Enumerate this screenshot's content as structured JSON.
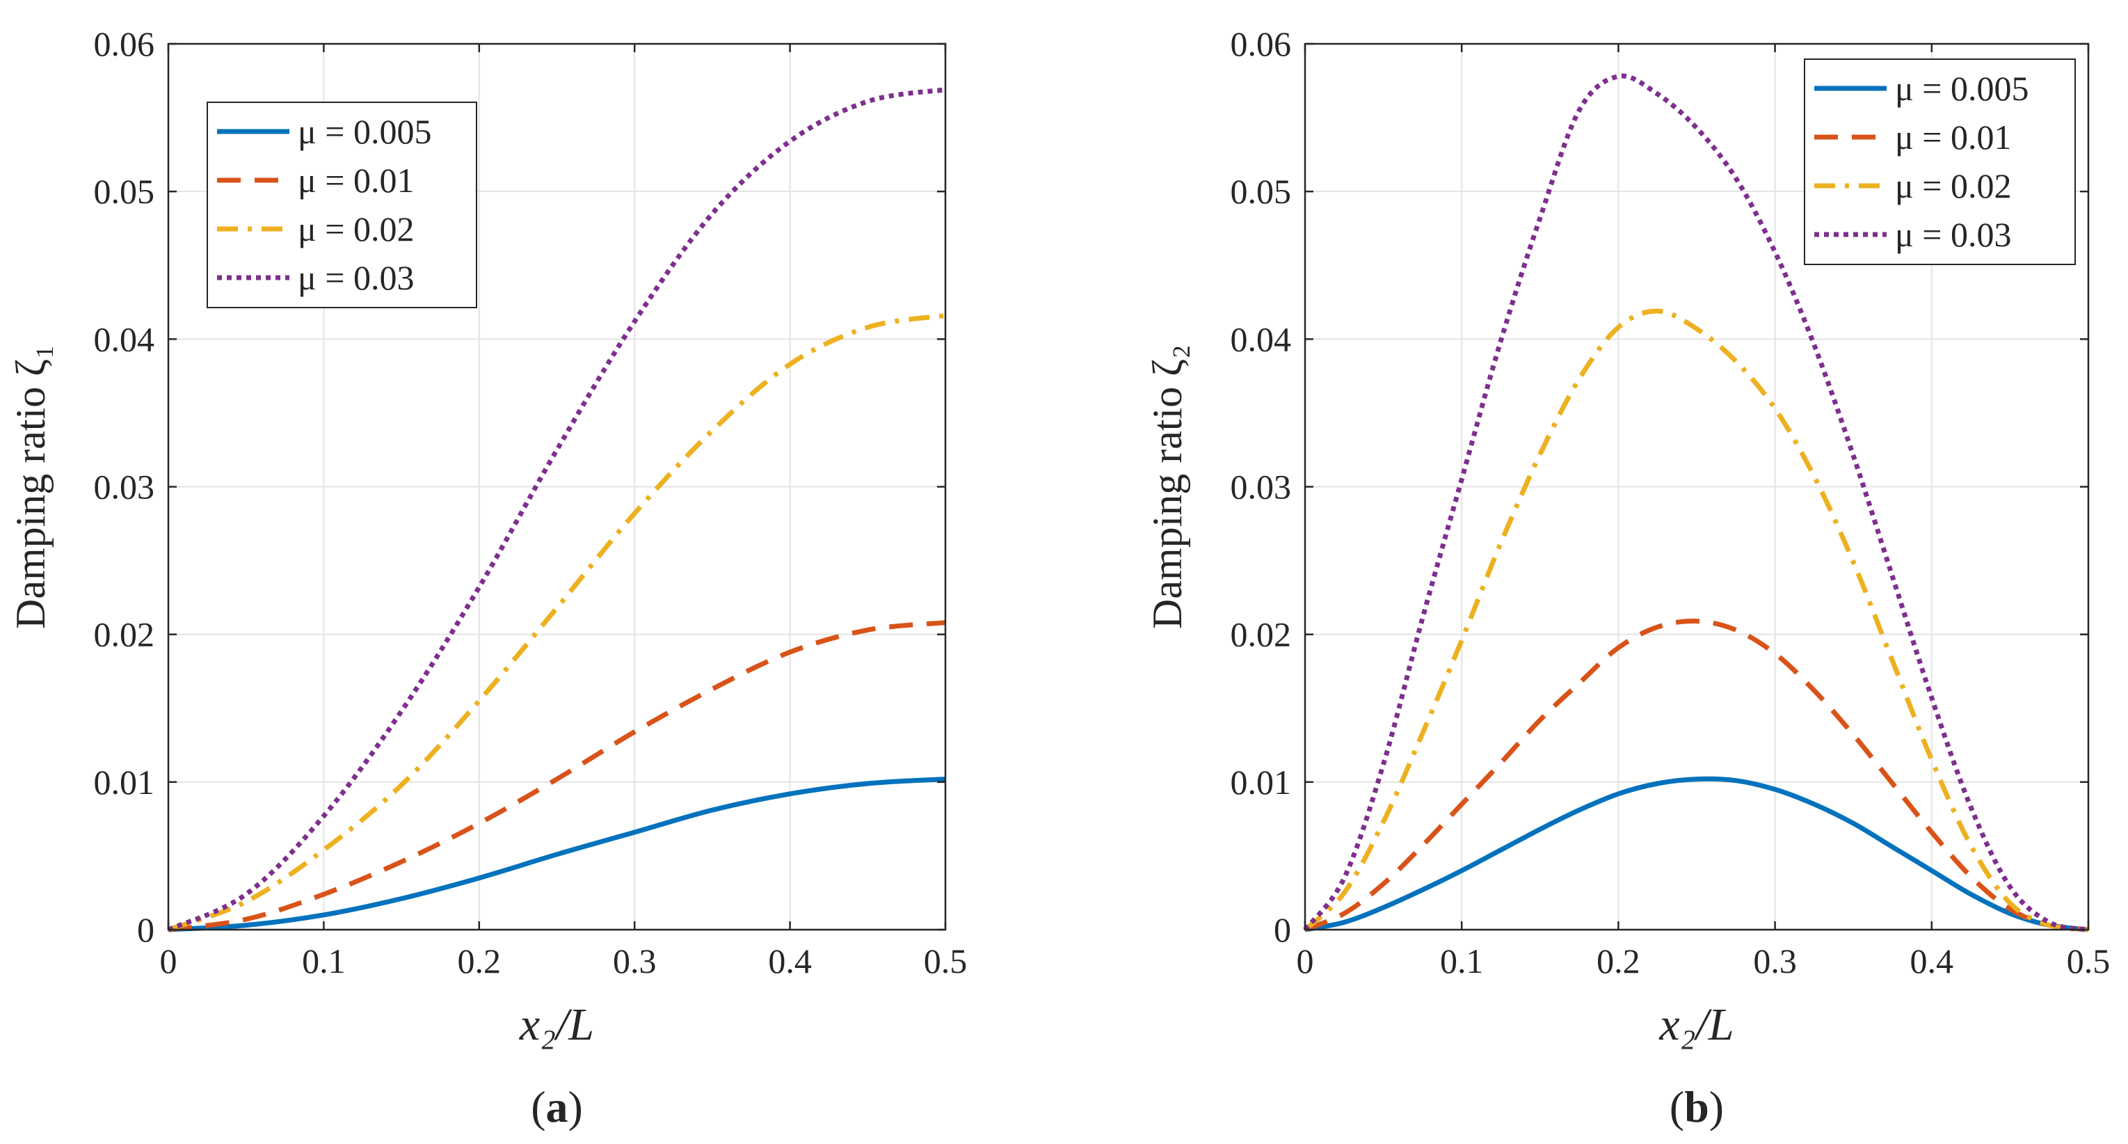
{
  "chart_data": [
    {
      "type": "line",
      "panel_label": "a",
      "title": "",
      "xlabel": "x₂/L",
      "ylabel": "Damping ratio ζ₁",
      "xlim": [
        0,
        0.5
      ],
      "ylim": [
        0,
        0.06
      ],
      "xticks": [
        0,
        0.1,
        0.2,
        0.3,
        0.4,
        0.5
      ],
      "xtick_labels": [
        "0",
        "0.1",
        "0.2",
        "0.3",
        "0.4",
        "0.5"
      ],
      "yticks": [
        0,
        0.01,
        0.02,
        0.03,
        0.04,
        0.05,
        0.06
      ],
      "ytick_labels": [
        "0",
        "0.01",
        "0.02",
        "0.03",
        "0.04",
        "0.05",
        "0.06"
      ],
      "grid": true,
      "legend_position": "top-left",
      "series": [
        {
          "name": "μ = 0.005",
          "color": "#0072BD",
          "style": "solid",
          "x": [
            0,
            0.05,
            0.1,
            0.15,
            0.2,
            0.25,
            0.3,
            0.35,
            0.4,
            0.45,
            0.5
          ],
          "y": [
            0,
            0.0003,
            0.001,
            0.0021,
            0.0035,
            0.0051,
            0.0066,
            0.0081,
            0.0092,
            0.0099,
            0.0102
          ]
        },
        {
          "name": "μ = 0.01",
          "color": "#D95319",
          "style": "dashed",
          "x": [
            0,
            0.05,
            0.1,
            0.15,
            0.2,
            0.25,
            0.3,
            0.35,
            0.4,
            0.45,
            0.5
          ],
          "y": [
            0,
            0.0007,
            0.0024,
            0.0046,
            0.0072,
            0.0102,
            0.0134,
            0.0163,
            0.0188,
            0.0203,
            0.0208
          ]
        },
        {
          "name": "μ = 0.02",
          "color": "#EDB120",
          "style": "dashdot",
          "x": [
            0,
            0.05,
            0.1,
            0.15,
            0.2,
            0.25,
            0.3,
            0.35,
            0.4,
            0.45,
            0.5
          ],
          "y": [
            0,
            0.0019,
            0.0054,
            0.0098,
            0.0155,
            0.0218,
            0.0282,
            0.0338,
            0.0383,
            0.0408,
            0.0416
          ]
        },
        {
          "name": "μ = 0.03",
          "color": "#7E2F8E",
          "style": "dotted",
          "x": [
            0,
            0.05,
            0.1,
            0.15,
            0.2,
            0.25,
            0.3,
            0.35,
            0.4,
            0.45,
            0.5
          ],
          "y": [
            0,
            0.0024,
            0.0077,
            0.0148,
            0.0232,
            0.0325,
            0.0412,
            0.0485,
            0.0534,
            0.0561,
            0.0569
          ]
        }
      ]
    },
    {
      "type": "line",
      "panel_label": "b",
      "title": "",
      "xlabel": "x₂/L",
      "ylabel": "Damping ratio ζ₂",
      "xlim": [
        0,
        0.5
      ],
      "ylim": [
        0,
        0.06
      ],
      "xticks": [
        0,
        0.1,
        0.2,
        0.3,
        0.4,
        0.5
      ],
      "xtick_labels": [
        "0",
        "0.1",
        "0.2",
        "0.3",
        "0.4",
        "0.5"
      ],
      "yticks": [
        0,
        0.01,
        0.02,
        0.03,
        0.04,
        0.05,
        0.06
      ],
      "ytick_labels": [
        "0",
        "0.01",
        "0.02",
        "0.03",
        "0.04",
        "0.05",
        "0.06"
      ],
      "grid": true,
      "legend_position": "top-right",
      "series": [
        {
          "name": "μ = 0.005",
          "color": "#0072BD",
          "style": "solid",
          "x": [
            0,
            0.025,
            0.05,
            0.075,
            0.1,
            0.125,
            0.15,
            0.175,
            0.2,
            0.225,
            0.25,
            0.275,
            0.3,
            0.325,
            0.35,
            0.375,
            0.4,
            0.425,
            0.45,
            0.475,
            0.5
          ],
          "y": [
            0,
            0.0005,
            0.0015,
            0.0027,
            0.004,
            0.0054,
            0.0068,
            0.0081,
            0.0092,
            0.0099,
            0.0102,
            0.0101,
            0.0095,
            0.0085,
            0.0072,
            0.0056,
            0.004,
            0.0024,
            0.0011,
            0.0003,
            0
          ]
        },
        {
          "name": "μ = 0.01",
          "color": "#D95319",
          "style": "dashed",
          "x": [
            0,
            0.025,
            0.05,
            0.075,
            0.1,
            0.125,
            0.15,
            0.175,
            0.2,
            0.225,
            0.25,
            0.275,
            0.3,
            0.325,
            0.35,
            0.375,
            0.4,
            0.425,
            0.45,
            0.475,
            0.5
          ],
          "y": [
            0,
            0.0011,
            0.0031,
            0.0057,
            0.0085,
            0.0113,
            0.0142,
            0.0167,
            0.0191,
            0.0205,
            0.0209,
            0.0203,
            0.0187,
            0.0162,
            0.0132,
            0.0099,
            0.0066,
            0.0036,
            0.0014,
            0.0003,
            0
          ]
        },
        {
          "name": "μ = 0.02",
          "color": "#EDB120",
          "style": "dashdot",
          "x": [
            0,
            0.025,
            0.05,
            0.075,
            0.1,
            0.125,
            0.15,
            0.175,
            0.2,
            0.225,
            0.25,
            0.275,
            0.3,
            0.325,
            0.35,
            0.375,
            0.4,
            0.425,
            0.45,
            0.475,
            0.5
          ],
          "y": [
            0,
            0.0025,
            0.0073,
            0.0133,
            0.0196,
            0.0262,
            0.0322,
            0.0373,
            0.0408,
            0.0419,
            0.0407,
            0.0385,
            0.0353,
            0.0307,
            0.0249,
            0.0182,
            0.0115,
            0.0057,
            0.0018,
            0.0003,
            0
          ]
        },
        {
          "name": "μ = 0.03",
          "color": "#7E2F8E",
          "style": "dotted",
          "x": [
            0,
            0.025,
            0.05,
            0.075,
            0.1,
            0.125,
            0.15,
            0.175,
            0.2,
            0.225,
            0.25,
            0.275,
            0.3,
            0.325,
            0.35,
            0.375,
            0.4,
            0.425,
            0.45,
            0.475,
            0.5
          ],
          "y": [
            0,
            0.0035,
            0.0112,
            0.0211,
            0.0305,
            0.0399,
            0.0482,
            0.0555,
            0.0578,
            0.0566,
            0.0543,
            0.0509,
            0.0459,
            0.0396,
            0.0321,
            0.0239,
            0.0157,
            0.0083,
            0.0029,
            0.0005,
            0
          ]
        }
      ]
    }
  ]
}
